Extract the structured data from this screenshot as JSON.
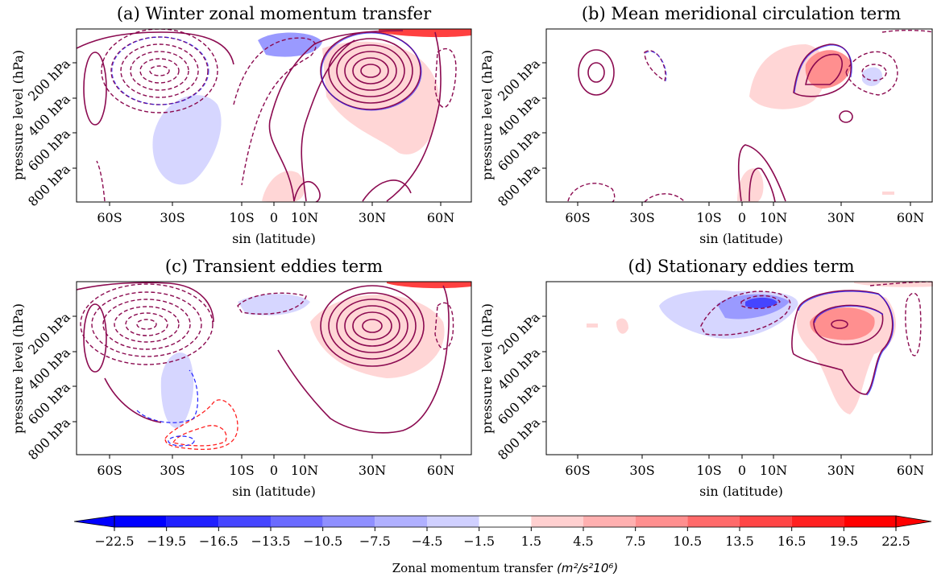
{
  "chart_data": [
    {
      "type": "contour",
      "title": "(a) Winter zonal momentum transfer",
      "xlabel": "sin (latitude)",
      "ylabel": "pressure level (hPa)",
      "xticks": [
        "60S",
        "30S",
        "10S",
        "0",
        "10N",
        "30N",
        "60N"
      ],
      "yticks": [
        "200 hPa",
        "400 hPa",
        "600 hPa",
        "800 hPa"
      ]
    },
    {
      "type": "contour",
      "title": "(b) Mean meridional circulation term",
      "xlabel": "sin (latitude)",
      "ylabel": "pressure level (hPa)",
      "xticks": [
        "60S",
        "30S",
        "10S",
        "0",
        "10N",
        "30N",
        "60N"
      ],
      "yticks": [
        "200 hPa",
        "400 hPa",
        "600 hPa",
        "800 hPa"
      ]
    },
    {
      "type": "contour",
      "title": "(c) Transient eddies term",
      "xlabel": "sin (latitude)",
      "ylabel": "pressure level (hPa)",
      "xticks": [
        "60S",
        "30S",
        "10S",
        "0",
        "10N",
        "30N",
        "60N"
      ],
      "yticks": [
        "200 hPa",
        "400 hPa",
        "600 hPa",
        "800 hPa"
      ]
    },
    {
      "type": "contour",
      "title": "(d) Stationary eddies term",
      "xlabel": "sin (latitude)",
      "ylabel": "pressure level (hPa)",
      "xticks": [
        "60S",
        "30S",
        "10S",
        "0",
        "10N",
        "30N",
        "60N"
      ],
      "yticks": [
        "200 hPa",
        "400 hPa",
        "600 hPa",
        "800 hPa"
      ]
    }
  ],
  "colorbar": {
    "label_text": "Zonal momentum transfer",
    "label_unit": "(m²/s²10⁶)",
    "ticks": [
      "−22.5",
      "−19.5",
      "−16.5",
      "−13.5",
      "−10.5",
      "−7.5",
      "−4.5",
      "−1.5",
      "1.5",
      "4.5",
      "7.5",
      "10.5",
      "13.5",
      "16.5",
      "19.5",
      "22.5"
    ],
    "tick_values": [
      -22.5,
      -19.5,
      -16.5,
      -13.5,
      -10.5,
      -7.5,
      -4.5,
      -1.5,
      1.5,
      4.5,
      7.5,
      10.5,
      13.5,
      16.5,
      19.5,
      22.5
    ],
    "colors": [
      "#0000ff",
      "#2020ff",
      "#4545ff",
      "#6a6aff",
      "#8f8fff",
      "#b0b0ff",
      "#d0d0ff",
      "#ffffff",
      "#ffd0d0",
      "#ffb0b0",
      "#ff8f8f",
      "#ff6a6a",
      "#ff4545",
      "#ff2020",
      "#ff0000"
    ],
    "extend_low": "#0000ff",
    "extend_high": "#ff0000"
  },
  "line_colors": {
    "blue": "#1f1fff",
    "red": "#ff1f1f",
    "purple": "#8b0a50"
  }
}
